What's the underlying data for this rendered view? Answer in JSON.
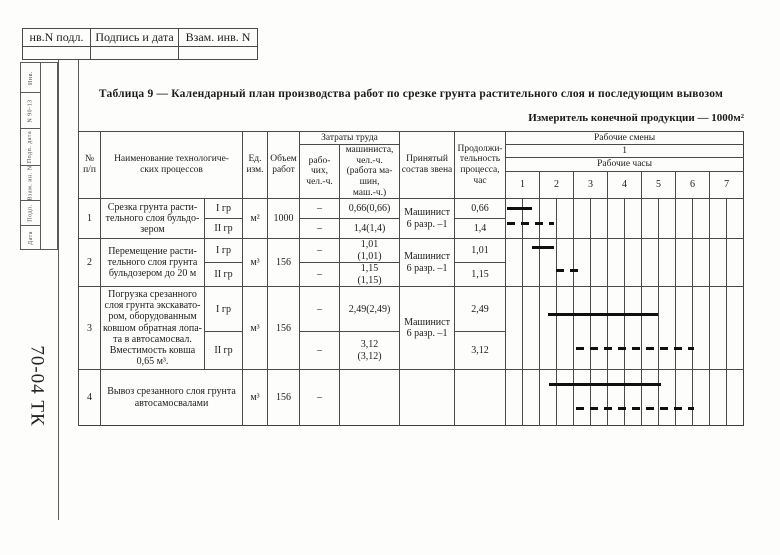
{
  "frame": {
    "top_strip": [
      "нв.N подл.",
      "Подпись и дата",
      "Взам. инв. N"
    ],
    "side_labels": [
      "Инв.",
      "N 90-13",
      "Подп. дата",
      "Взам. ин. N",
      "Подп.",
      "Дата"
    ],
    "doc_code": "70-04 ТК"
  },
  "title": "Таблица 9 — Календарный план производства работ по срезке грунта растительного слоя и последующим вывозом",
  "measure": "Измеритель конечной продукции — 1000м²",
  "table": {
    "headers": {
      "num": "№\nп/п",
      "name": "Наименование технологиче-\nских процессов",
      "unit": "Ед.\nизм.",
      "volume": "Объем\nработ",
      "labor_group": "Затраты труда",
      "workers": "рабо-\nчих,\nчел.-ч.",
      "machinist": "машиниста,\nчел.-ч.\n(работа ма-\nшин,\nмаш.-ч.)",
      "crew": "Принятый\nсостав звена",
      "duration": "Продолжи-\nтельность\nпроцесса,\nчас",
      "shifts": "Рабочие смены",
      "shift_num": "1",
      "hours_label": "Рабочие часы",
      "hours": [
        "1",
        "2",
        "3",
        "4",
        "5",
        "6",
        "7"
      ]
    },
    "rows": [
      {
        "num": "1",
        "name": "Срезка грунта расти-\nтельного слоя бульдо-\nзером",
        "grades": [
          "I гр",
          "II гр"
        ],
        "unit": "м²",
        "volume": "1000",
        "workers": [
          "–",
          "–"
        ],
        "machinist": [
          "0,66(0,66)",
          "1,4(1,4)"
        ],
        "crew": "Машинист\n6 разр. –1",
        "duration": [
          "0,66",
          "1,4"
        ]
      },
      {
        "num": "2",
        "name": "Перемещение расти-\nтельного слоя грунта\nбульдозером до 20 м",
        "grades": [
          "I гр",
          "II гр"
        ],
        "unit": "м³",
        "volume": "156",
        "workers": [
          "–",
          "–"
        ],
        "machinist": [
          "1,01\n(1,01)",
          "1,15\n(1,15)"
        ],
        "crew": "Машинист\n6 разр. –1",
        "duration": [
          "1,01",
          "1,15"
        ]
      },
      {
        "num": "3",
        "name": "Погрузка срезанного\nслоя грунта экскавато-\nром, оборудованным\nковшом обратная лопа-\nта в автосамосвал.\nВместимость ковша\n0,65 м³.",
        "grades": [
          "I гр",
          "II гр"
        ],
        "unit": "м³",
        "volume": "156",
        "workers": [
          "–",
          "–"
        ],
        "machinist": [
          "2,49(2,49)",
          "3,12\n(3,12)"
        ],
        "crew": "Машинист\n6 разр. –1",
        "duration": [
          "2,49",
          "3,12"
        ]
      },
      {
        "num": "4",
        "name": "Вывоз срезанного слоя грунта\nавтосамосвалами",
        "grades": [],
        "unit": "м³",
        "volume": "156",
        "workers": [
          "–"
        ],
        "machinist": [
          ""
        ],
        "crew": "",
        "duration": [
          ""
        ]
      }
    ]
  },
  "chart_data": {
    "type": "gantt",
    "title": "Рабочие смены",
    "shift": "1",
    "xlabel": "Рабочие часы",
    "x_ticks": [
      1,
      2,
      3,
      4,
      5,
      6,
      7
    ],
    "x_range": [
      0,
      7
    ],
    "legend": {
      "solid": "I гр",
      "dashed": "II гр"
    },
    "bars": [
      {
        "task": "1",
        "grade": "I гр",
        "style": "solid",
        "start_hour": 0.05,
        "end_hour": 0.8,
        "duration": "0,66"
      },
      {
        "task": "1",
        "grade": "II гр",
        "style": "dashed",
        "start_hour": 0.05,
        "end_hour": 1.45,
        "duration": "1,4"
      },
      {
        "task": "2",
        "grade": "I гр",
        "style": "solid",
        "start_hour": 0.8,
        "end_hour": 1.45,
        "duration": "1,01"
      },
      {
        "task": "2",
        "grade": "II гр",
        "style": "dashed",
        "start_hour": 1.5,
        "end_hour": 2.15,
        "duration": "1,15"
      },
      {
        "task": "3",
        "grade": "I гр",
        "style": "solid",
        "start_hour": 1.25,
        "end_hour": 4.5,
        "duration": "2,49"
      },
      {
        "task": "3",
        "grade": "II гр",
        "style": "dashed",
        "start_hour": 2.1,
        "end_hour": 5.55,
        "duration": "3,12"
      },
      {
        "task": "4",
        "grade": "I гр",
        "style": "solid",
        "start_hour": 1.3,
        "end_hour": 4.6,
        "duration": ""
      },
      {
        "task": "4",
        "grade": "II гр",
        "style": "dashed",
        "start_hour": 2.1,
        "end_hour": 5.55,
        "duration": ""
      }
    ]
  }
}
